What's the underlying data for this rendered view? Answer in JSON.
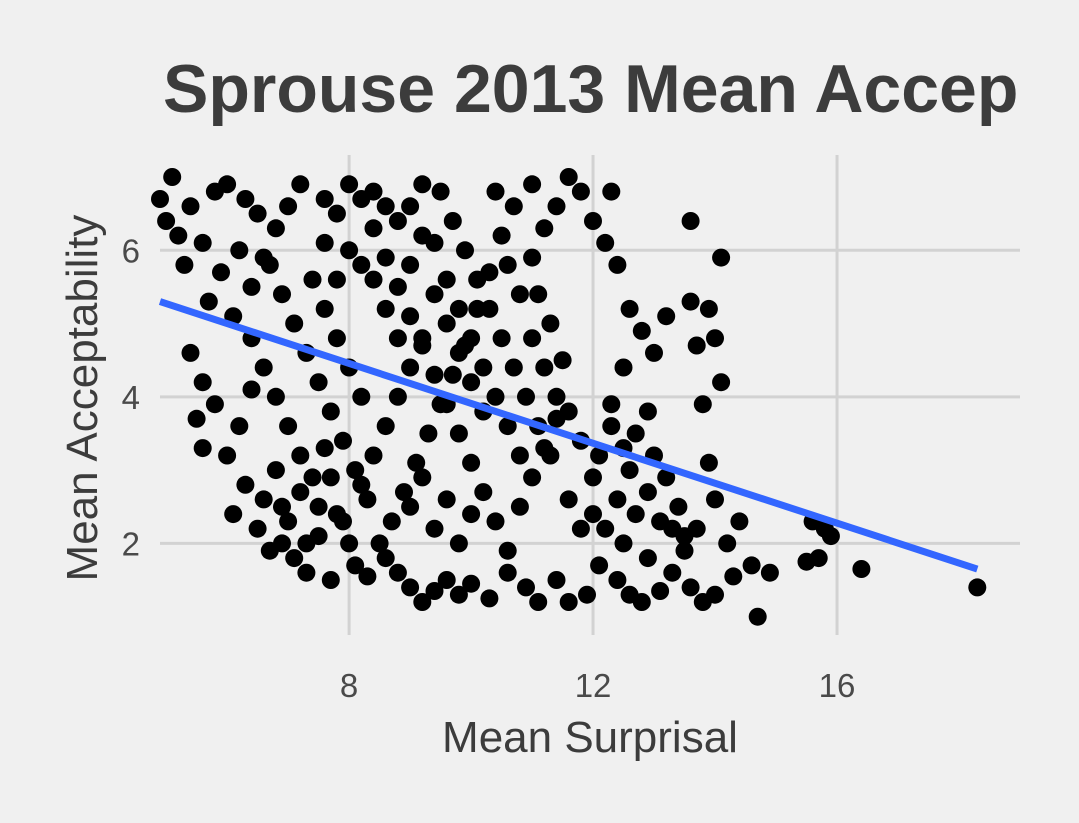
{
  "chart_data": {
    "type": "scatter",
    "title": "Sprouse 2013 Mean Accep",
    "xlabel": "Mean Surprisal",
    "ylabel": "Mean Acceptability",
    "xlim": [
      4.9,
      19.0
    ],
    "ylim": [
      0.75,
      7.3
    ],
    "x_ticks": [
      8,
      12,
      16
    ],
    "x_tick_labels": [
      "8",
      "12",
      "16"
    ],
    "y_ticks": [
      2,
      4,
      6
    ],
    "y_tick_labels": [
      "2",
      "4",
      "6"
    ],
    "grid": true,
    "legend": "none",
    "point_color": "#000000",
    "line_color": "#3366ff",
    "trend_line": {
      "x": [
        4.9,
        18.3
      ],
      "y": [
        5.3,
        1.65
      ]
    },
    "points": [
      [
        4.9,
        6.7
      ],
      [
        5.1,
        7.0
      ],
      [
        5.2,
        6.2
      ],
      [
        5.3,
        5.8
      ],
      [
        5.0,
        6.4
      ],
      [
        5.4,
        6.6
      ],
      [
        5.6,
        6.1
      ],
      [
        5.8,
        6.8
      ],
      [
        6.0,
        6.9
      ],
      [
        6.3,
        6.7
      ],
      [
        6.5,
        6.5
      ],
      [
        6.2,
        6.0
      ],
      [
        5.9,
        5.7
      ],
      [
        5.7,
        5.3
      ],
      [
        6.1,
        5.1
      ],
      [
        6.4,
        5.5
      ],
      [
        6.6,
        5.9
      ],
      [
        6.8,
        6.3
      ],
      [
        7.0,
        6.6
      ],
      [
        7.2,
        6.9
      ],
      [
        5.4,
        4.6
      ],
      [
        5.6,
        4.2
      ],
      [
        5.5,
        3.7
      ],
      [
        5.6,
        3.3
      ],
      [
        5.8,
        3.9
      ],
      [
        6.0,
        3.2
      ],
      [
        6.2,
        3.6
      ],
      [
        6.4,
        4.1
      ],
      [
        6.1,
        2.4
      ],
      [
        6.3,
        2.8
      ],
      [
        6.5,
        2.2
      ],
      [
        6.7,
        1.9
      ],
      [
        6.9,
        2.5
      ],
      [
        7.1,
        1.8
      ],
      [
        7.3,
        1.6
      ],
      [
        7.5,
        2.1
      ],
      [
        7.7,
        1.5
      ],
      [
        7.9,
        2.3
      ],
      [
        8.1,
        1.7
      ],
      [
        8.3,
        1.55
      ],
      [
        8.6,
        1.8
      ],
      [
        8.8,
        1.6
      ],
      [
        9.0,
        1.4
      ],
      [
        9.2,
        1.2
      ],
      [
        9.4,
        1.35
      ],
      [
        9.6,
        1.5
      ],
      [
        9.8,
        1.3
      ],
      [
        10.0,
        1.45
      ],
      [
        10.3,
        1.25
      ],
      [
        10.6,
        1.6
      ],
      [
        10.9,
        1.4
      ],
      [
        11.1,
        1.2
      ],
      [
        11.4,
        1.5
      ],
      [
        11.6,
        1.2
      ],
      [
        11.9,
        1.3
      ],
      [
        12.1,
        1.7
      ],
      [
        12.4,
        1.5
      ],
      [
        12.6,
        1.3
      ],
      [
        12.8,
        1.2
      ],
      [
        13.1,
        1.35
      ],
      [
        13.3,
        1.6
      ],
      [
        13.6,
        1.4
      ],
      [
        13.8,
        1.2
      ],
      [
        14.0,
        1.3
      ],
      [
        14.3,
        1.55
      ],
      [
        14.6,
        1.7
      ],
      [
        14.7,
        1.0
      ],
      [
        14.9,
        1.6
      ],
      [
        15.5,
        1.75
      ],
      [
        15.7,
        1.8
      ],
      [
        15.6,
        2.3
      ],
      [
        15.8,
        2.2
      ],
      [
        15.9,
        2.1
      ],
      [
        16.4,
        1.65
      ],
      [
        18.3,
        1.4
      ],
      [
        14.4,
        2.3
      ],
      [
        14.2,
        2.0
      ],
      [
        14.0,
        2.6
      ],
      [
        13.9,
        3.1
      ],
      [
        13.8,
        3.9
      ],
      [
        14.1,
        4.2
      ],
      [
        14.0,
        4.8
      ],
      [
        13.7,
        4.7
      ],
      [
        13.9,
        5.2
      ],
      [
        13.6,
        5.3
      ],
      [
        14.1,
        5.9
      ],
      [
        13.6,
        6.4
      ],
      [
        13.2,
        5.1
      ],
      [
        13.0,
        4.6
      ],
      [
        12.8,
        4.9
      ],
      [
        12.6,
        5.2
      ],
      [
        12.4,
        5.8
      ],
      [
        12.2,
        6.1
      ],
      [
        12.0,
        6.4
      ],
      [
        12.3,
        6.8
      ],
      [
        12.5,
        4.4
      ],
      [
        12.3,
        3.9
      ],
      [
        12.7,
        3.5
      ],
      [
        13.0,
        3.2
      ],
      [
        13.2,
        2.9
      ],
      [
        13.4,
        2.5
      ],
      [
        13.5,
        2.1
      ],
      [
        13.1,
        2.3
      ],
      [
        12.9,
        2.7
      ],
      [
        12.6,
        3.0
      ],
      [
        12.4,
        2.6
      ],
      [
        12.2,
        2.2
      ],
      [
        12.0,
        2.9
      ],
      [
        11.8,
        3.4
      ],
      [
        11.6,
        3.8
      ],
      [
        11.5,
        4.5
      ],
      [
        11.3,
        5.0
      ],
      [
        11.1,
        5.4
      ],
      [
        11.0,
        5.9
      ],
      [
        11.2,
        6.3
      ],
      [
        11.4,
        6.6
      ],
      [
        11.6,
        7.0
      ],
      [
        11.8,
        6.8
      ],
      [
        11.0,
        6.9
      ],
      [
        10.7,
        6.6
      ],
      [
        10.5,
        6.2
      ],
      [
        10.3,
        5.7
      ],
      [
        10.1,
        5.2
      ],
      [
        9.9,
        4.7
      ],
      [
        9.7,
        4.3
      ],
      [
        9.5,
        3.9
      ],
      [
        9.3,
        3.5
      ],
      [
        9.1,
        3.1
      ],
      [
        8.9,
        2.7
      ],
      [
        8.7,
        2.3
      ],
      [
        8.5,
        2.0
      ],
      [
        8.3,
        2.6
      ],
      [
        8.1,
        3.0
      ],
      [
        7.9,
        3.4
      ],
      [
        7.7,
        3.8
      ],
      [
        7.5,
        4.2
      ],
      [
        7.3,
        4.6
      ],
      [
        7.1,
        5.0
      ],
      [
        6.9,
        5.4
      ],
      [
        6.7,
        5.8
      ],
      [
        7.6,
        6.1
      ],
      [
        7.8,
        6.5
      ],
      [
        8.0,
        6.9
      ],
      [
        8.2,
        6.7
      ],
      [
        8.4,
        6.3
      ],
      [
        8.6,
        5.9
      ],
      [
        8.8,
        5.5
      ],
      [
        9.0,
        5.1
      ],
      [
        9.2,
        4.7
      ],
      [
        9.4,
        4.3
      ],
      [
        9.6,
        3.9
      ],
      [
        9.8,
        3.5
      ],
      [
        10.0,
        3.1
      ],
      [
        10.2,
        2.7
      ],
      [
        10.4,
        2.3
      ],
      [
        10.6,
        1.9
      ],
      [
        10.8,
        2.5
      ],
      [
        11.0,
        2.9
      ],
      [
        11.2,
        3.3
      ],
      [
        11.4,
        3.7
      ],
      [
        9.5,
        6.8
      ],
      [
        9.7,
        6.4
      ],
      [
        9.9,
        6.0
      ],
      [
        10.1,
        5.6
      ],
      [
        10.3,
        5.2
      ],
      [
        10.5,
        4.8
      ],
      [
        10.7,
        4.4
      ],
      [
        10.9,
        4.0
      ],
      [
        11.1,
        3.6
      ],
      [
        11.3,
        3.2
      ],
      [
        7.4,
        2.9
      ],
      [
        7.6,
        3.3
      ],
      [
        7.8,
        2.4
      ],
      [
        8.0,
        2.0
      ],
      [
        8.2,
        2.8
      ],
      [
        8.4,
        3.2
      ],
      [
        8.6,
        3.6
      ],
      [
        8.8,
        4.0
      ],
      [
        9.0,
        4.4
      ],
      [
        9.2,
        4.8
      ],
      [
        6.8,
        4.0
      ],
      [
        7.0,
        3.6
      ],
      [
        7.2,
        3.2
      ],
      [
        6.6,
        4.4
      ],
      [
        6.4,
        4.8
      ],
      [
        7.4,
        5.6
      ],
      [
        7.6,
        5.2
      ],
      [
        7.8,
        4.8
      ],
      [
        8.0,
        4.4
      ],
      [
        8.2,
        4.0
      ],
      [
        8.4,
        5.6
      ],
      [
        8.6,
        5.2
      ],
      [
        8.8,
        4.8
      ],
      [
        9.0,
        5.8
      ],
      [
        9.2,
        6.2
      ],
      [
        9.4,
        5.4
      ],
      [
        9.6,
        5.0
      ],
      [
        9.8,
        4.6
      ],
      [
        10.0,
        4.2
      ],
      [
        10.2,
        3.8
      ],
      [
        8.0,
        6.0
      ],
      [
        8.2,
        5.8
      ],
      [
        8.4,
        6.8
      ],
      [
        8.6,
        6.6
      ],
      [
        8.8,
        6.4
      ],
      [
        9.0,
        6.6
      ],
      [
        9.2,
        6.9
      ],
      [
        9.4,
        6.1
      ],
      [
        7.8,
        5.6
      ],
      [
        7.6,
        6.7
      ],
      [
        10.4,
        6.8
      ],
      [
        10.6,
        5.8
      ],
      [
        10.8,
        5.4
      ],
      [
        11.0,
        4.8
      ],
      [
        11.2,
        4.4
      ],
      [
        11.4,
        4.0
      ],
      [
        11.6,
        2.6
      ],
      [
        11.8,
        2.2
      ],
      [
        12.0,
        2.4
      ],
      [
        10.8,
        3.2
      ],
      [
        10.6,
        3.6
      ],
      [
        10.4,
        4.0
      ],
      [
        10.2,
        4.4
      ],
      [
        10.0,
        4.8
      ],
      [
        9.8,
        5.2
      ],
      [
        9.6,
        5.6
      ],
      [
        9.4,
        2.2
      ],
      [
        9.6,
        2.6
      ],
      [
        9.8,
        2.0
      ],
      [
        10.0,
        2.4
      ],
      [
        7.0,
        2.3
      ],
      [
        7.2,
        2.7
      ],
      [
        6.8,
        3.0
      ],
      [
        6.6,
        2.6
      ],
      [
        6.9,
        2.0
      ],
      [
        7.3,
        2.0
      ],
      [
        7.5,
        2.5
      ],
      [
        7.7,
        2.9
      ],
      [
        9.0,
        2.5
      ],
      [
        9.2,
        2.9
      ],
      [
        12.5,
        2.0
      ],
      [
        12.7,
        2.4
      ],
      [
        12.9,
        1.8
      ],
      [
        13.3,
        2.2
      ],
      [
        13.5,
        1.9
      ],
      [
        13.7,
        2.2
      ],
      [
        12.1,
        3.2
      ],
      [
        12.3,
        3.6
      ],
      [
        12.5,
        3.3
      ],
      [
        12.9,
        3.8
      ]
    ]
  }
}
